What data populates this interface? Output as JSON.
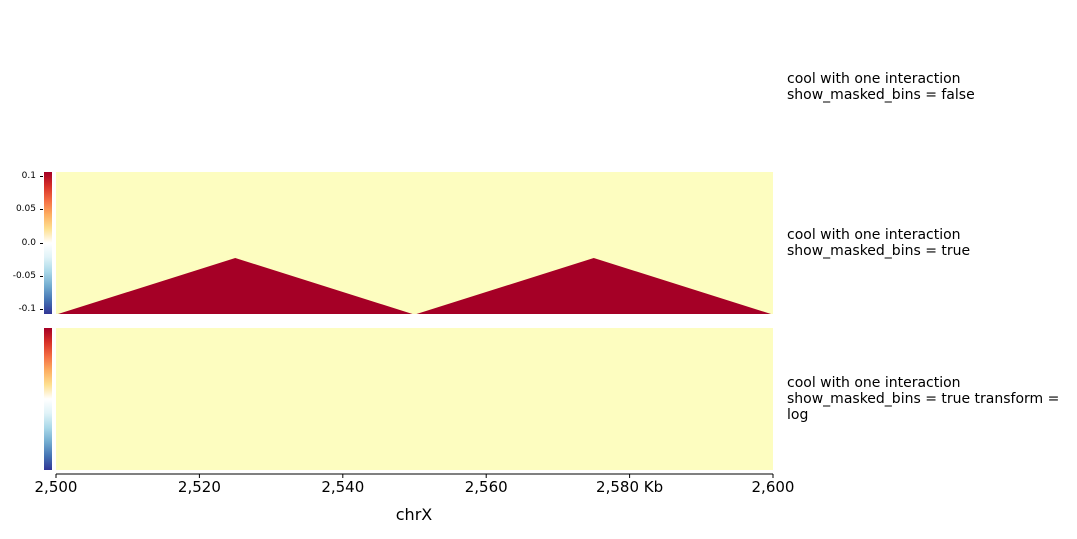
{
  "chart_data": {
    "type": "heatmap",
    "xlabel": "chrX",
    "x_ticks": [
      "2,500",
      "2,520",
      "2,540",
      "2,560",
      "2,580 Kb",
      "2,600"
    ],
    "x_tick_values": [
      2500,
      2520,
      2540,
      2560,
      2580,
      2600
    ],
    "xlim": [
      2500,
      2600
    ],
    "colors": {
      "background": "#fdfdc0",
      "mask": "#a50026",
      "cmap": [
        "#313695",
        "#4575b4",
        "#74add1",
        "#abd9e9",
        "#e0f3f8",
        "#ffffff",
        "#fee090",
        "#fdae61",
        "#f46d43",
        "#d73027",
        "#a50026"
      ]
    },
    "tracks": [
      {
        "label": "cool with one interaction\nshow_masked_bins = false",
        "has_heatmap": false
      },
      {
        "label": "cool with one interaction\nshow_masked_bins = true",
        "has_heatmap": true,
        "colorbar_ticks": [
          "0.1",
          "0.05",
          "0.0",
          "-0.05",
          "-0.1"
        ],
        "colorbar_tick_values": [
          0.1,
          0.05,
          0.0,
          -0.05,
          -0.1
        ],
        "colorbar_range": [
          -0.1,
          0.1
        ],
        "masked_triangles_kb": [
          [
            2500,
            2525,
            2550
          ],
          [
            2550,
            2575,
            2600
          ]
        ]
      },
      {
        "label": "cool with one interaction\nshow_masked_bins = true transform =\nlog",
        "has_heatmap": true,
        "colorbar_ticks": [],
        "masked_triangles_kb": []
      }
    ]
  }
}
